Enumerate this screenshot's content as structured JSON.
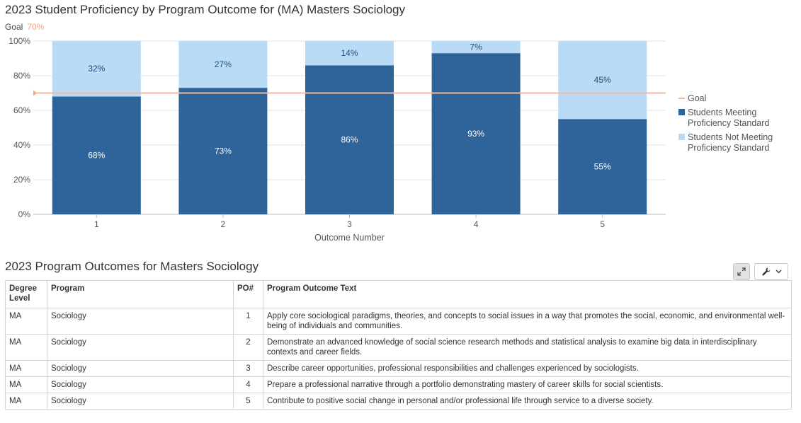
{
  "chart_title": "2023 Student Proficiency by Program Outcome for (MA) Masters Sociology",
  "goal_text": "Goal",
  "goal_value_text": "70%",
  "chart_data": {
    "type": "bar",
    "stacked": true,
    "categories": [
      "1",
      "2",
      "3",
      "4",
      "5"
    ],
    "series": [
      {
        "name": "Students Meeting Proficiency Standard",
        "values": [
          68,
          73,
          86,
          93,
          55
        ],
        "labels": [
          "68%",
          "73%",
          "86%",
          "93%",
          "55%"
        ],
        "color": "#2e6499",
        "label_color": "#ffffff"
      },
      {
        "name": "Students Not Meeting Proficiency Standard",
        "values": [
          32,
          27,
          14,
          7,
          45
        ],
        "labels": [
          "32%",
          "27%",
          "14%",
          "7%",
          "45%"
        ],
        "color": "#b9dbf5",
        "label_color": "#1f4e79"
      }
    ],
    "goal": {
      "name": "Goal",
      "value": 70,
      "color": "#f4b9a0"
    },
    "xlabel": "Outcome Number",
    "ylabel": "",
    "ylim": [
      0,
      100
    ],
    "yticks": [
      0,
      20,
      40,
      60,
      80,
      100
    ],
    "ytick_labels": [
      "0%",
      "20%",
      "40%",
      "60%",
      "80%",
      "100%"
    ],
    "grid": true,
    "legend": {
      "placement": "right",
      "entries": [
        {
          "lines": [
            "Goal"
          ]
        },
        {
          "lines": [
            "Students Meeting",
            "Proficiency Standard"
          ]
        },
        {
          "lines": [
            "Students Not Meeting",
            "Proficiency Standard"
          ]
        }
      ]
    }
  },
  "table_title": "2023 Program Outcomes for Masters Sociology",
  "toolbar": {
    "expand_icon": "expand-icon",
    "settings_icon": "wrench-icon",
    "dropdown_icon": "chevron-down-icon"
  },
  "table": {
    "headers": [
      "Degree Level",
      "Program",
      "PO#",
      "Program Outcome Text"
    ],
    "rows": [
      [
        "MA",
        "Sociology",
        "1",
        "Apply core sociological paradigms, theories, and concepts to social issues in a way that promotes the social, economic, and environmental well-being of individuals and communities."
      ],
      [
        "MA",
        "Sociology",
        "2",
        "Demonstrate an advanced knowledge of social science research methods and statistical analysis to examine big data in interdisciplinary contexts and career fields."
      ],
      [
        "MA",
        "Sociology",
        "3",
        "Describe career opportunities, professional responsibilities and challenges experienced by sociologists."
      ],
      [
        "MA",
        "Sociology",
        "4",
        "Prepare a professional narrative through a portfolio demonstrating mastery of career skills for social scientists."
      ],
      [
        "MA",
        "Sociology",
        "5",
        "Contribute to positive social change in personal and/or professional life through service to a diverse society."
      ]
    ]
  }
}
